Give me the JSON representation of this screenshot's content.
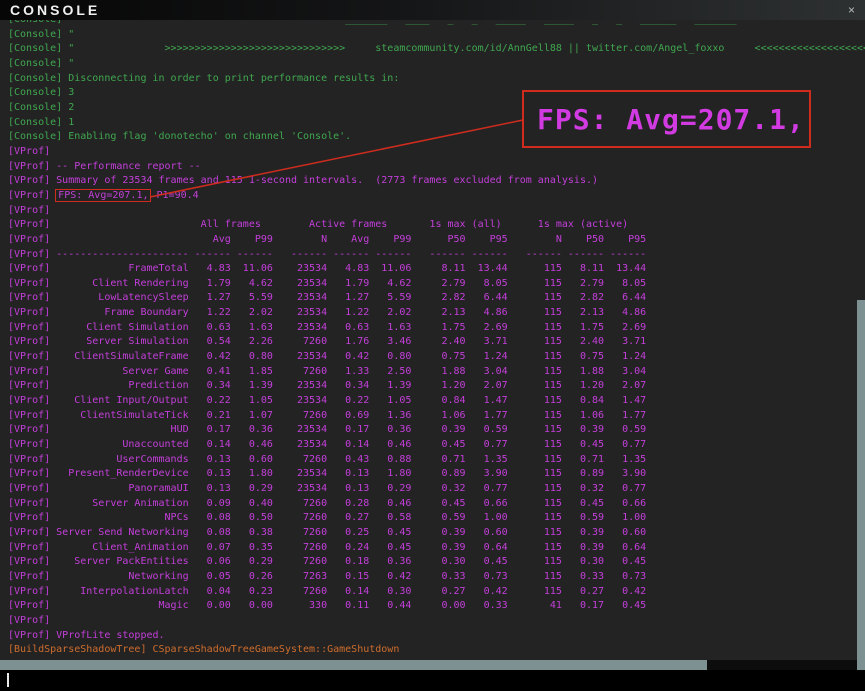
{
  "window": {
    "title": "CONSOLE",
    "close": "×"
  },
  "colors": {
    "green": "#3fa74f",
    "magenta": "#c33fda",
    "magenta-bright": "#d23be2",
    "orange": "#cd6d2c",
    "red": "#cf2c1e",
    "bg-output": "#242324",
    "scrollbar": "#7d9193"
  },
  "callout": {
    "text": "FPS: Avg=207.1,"
  },
  "console": {
    "lines": [
      {
        "c": "green",
        "t": "[Console] \"                                             _______   ____   _   _   _____   _____   _   _   ______   _______"
      },
      {
        "c": "green",
        "t": "[Console] \""
      },
      {
        "c": "green",
        "t": "[Console] \"               >>>>>>>>>>>>>>>>>>>>>>>>>>>>>>     steamcommunity.com/id/AnnGell88 || twitter.com/Angel_foxxo     <<<<<<<<<<<<<<<<<<<<<<<<<<<<<<"
      },
      {
        "c": "green",
        "t": "[Console] \""
      },
      {
        "c": "green",
        "t": "[Console] Disconnecting in order to print performance results in:"
      },
      {
        "c": "green",
        "t": "[Console] 3"
      },
      {
        "c": "green",
        "t": "[Console] 2"
      },
      {
        "c": "green",
        "t": "[Console] 1"
      },
      {
        "c": "green",
        "t": "[Console] Enabling flag 'donotecho' on channel 'Console'."
      },
      {
        "c": "magenta",
        "t": "[VProf]"
      },
      {
        "c": "magenta",
        "t": "[VProf] -- Performance report --"
      },
      {
        "c": "magenta",
        "t": "[VProf] Summary of 23534 frames and 115 1-second intervals.  (2773 frames excluded from analysis.)"
      },
      {
        "c": "magenta",
        "t": "[VProf] FPS: Avg=207.1, P1=90.4",
        "hl": "FPS: Avg=207.1,"
      },
      {
        "c": "magenta",
        "t": "[VProf]"
      },
      {
        "table": true
      },
      {
        "c": "magenta",
        "t": "[VProf]"
      },
      {
        "c": "magenta",
        "t": "[VProf] VProfLite stopped."
      },
      {
        "c": "orange",
        "t": "[BuildSparseShadowTree] CSparseShadowTreeGameSystem::GameShutdown"
      }
    ],
    "table": {
      "prefix": "[VProf] ",
      "groups": [
        "All frames",
        "Active frames",
        "1s max (all)",
        "1s max (active)"
      ],
      "columns": [
        "Avg",
        "P99",
        "N",
        "Avg",
        "P99",
        "P50",
        "P95",
        "N",
        "P50",
        "P95"
      ],
      "rows": [
        [
          "FrameTotal",
          "4.83",
          "11.06",
          "23534",
          "4.83",
          "11.06",
          "8.11",
          "13.44",
          "115",
          "8.11",
          "13.44"
        ],
        [
          "Client Rendering",
          "1.79",
          "4.62",
          "23534",
          "1.79",
          "4.62",
          "2.79",
          "8.05",
          "115",
          "2.79",
          "8.05"
        ],
        [
          "LowLatencySleep",
          "1.27",
          "5.59",
          "23534",
          "1.27",
          "5.59",
          "2.82",
          "6.44",
          "115",
          "2.82",
          "6.44"
        ],
        [
          "Frame Boundary",
          "1.22",
          "2.02",
          "23534",
          "1.22",
          "2.02",
          "2.13",
          "4.86",
          "115",
          "2.13",
          "4.86"
        ],
        [
          "Client Simulation",
          "0.63",
          "1.63",
          "23534",
          "0.63",
          "1.63",
          "1.75",
          "2.69",
          "115",
          "1.75",
          "2.69"
        ],
        [
          "Server Simulation",
          "0.54",
          "2.26",
          "7260",
          "1.76",
          "3.46",
          "2.40",
          "3.71",
          "115",
          "2.40",
          "3.71"
        ],
        [
          "ClientSimulateFrame",
          "0.42",
          "0.80",
          "23534",
          "0.42",
          "0.80",
          "0.75",
          "1.24",
          "115",
          "0.75",
          "1.24"
        ],
        [
          "Server Game",
          "0.41",
          "1.85",
          "7260",
          "1.33",
          "2.50",
          "1.88",
          "3.04",
          "115",
          "1.88",
          "3.04"
        ],
        [
          "Prediction",
          "0.34",
          "1.39",
          "23534",
          "0.34",
          "1.39",
          "1.20",
          "2.07",
          "115",
          "1.20",
          "2.07"
        ],
        [
          "Client Input/Output",
          "0.22",
          "1.05",
          "23534",
          "0.22",
          "1.05",
          "0.84",
          "1.47",
          "115",
          "0.84",
          "1.47"
        ],
        [
          "ClientSimulateTick",
          "0.21",
          "1.07",
          "7260",
          "0.69",
          "1.36",
          "1.06",
          "1.77",
          "115",
          "1.06",
          "1.77"
        ],
        [
          "HUD",
          "0.17",
          "0.36",
          "23534",
          "0.17",
          "0.36",
          "0.39",
          "0.59",
          "115",
          "0.39",
          "0.59"
        ],
        [
          "Unaccounted",
          "0.14",
          "0.46",
          "23534",
          "0.14",
          "0.46",
          "0.45",
          "0.77",
          "115",
          "0.45",
          "0.77"
        ],
        [
          "UserCommands",
          "0.13",
          "0.60",
          "7260",
          "0.43",
          "0.88",
          "0.71",
          "1.35",
          "115",
          "0.71",
          "1.35"
        ],
        [
          "Present_RenderDevice",
          "0.13",
          "1.80",
          "23534",
          "0.13",
          "1.80",
          "0.89",
          "3.90",
          "115",
          "0.89",
          "3.90"
        ],
        [
          "PanoramaUI",
          "0.13",
          "0.29",
          "23534",
          "0.13",
          "0.29",
          "0.32",
          "0.77",
          "115",
          "0.32",
          "0.77"
        ],
        [
          "Server Animation",
          "0.09",
          "0.40",
          "7260",
          "0.28",
          "0.46",
          "0.45",
          "0.66",
          "115",
          "0.45",
          "0.66"
        ],
        [
          "NPCs",
          "0.08",
          "0.50",
          "7260",
          "0.27",
          "0.58",
          "0.59",
          "1.00",
          "115",
          "0.59",
          "1.00"
        ],
        [
          "Server Send Networking",
          "0.08",
          "0.38",
          "7260",
          "0.25",
          "0.45",
          "0.39",
          "0.60",
          "115",
          "0.39",
          "0.60"
        ],
        [
          "Client_Animation",
          "0.07",
          "0.35",
          "7260",
          "0.24",
          "0.45",
          "0.39",
          "0.64",
          "115",
          "0.39",
          "0.64"
        ],
        [
          "Server PackEntities",
          "0.06",
          "0.29",
          "7260",
          "0.18",
          "0.36",
          "0.30",
          "0.45",
          "115",
          "0.30",
          "0.45"
        ],
        [
          "Networking",
          "0.05",
          "0.26",
          "7263",
          "0.15",
          "0.42",
          "0.33",
          "0.73",
          "115",
          "0.33",
          "0.73"
        ],
        [
          "InterpolationLatch",
          "0.04",
          "0.23",
          "7260",
          "0.14",
          "0.30",
          "0.27",
          "0.42",
          "115",
          "0.27",
          "0.42"
        ],
        [
          "Magic",
          "0.00",
          "0.00",
          "330",
          "0.11",
          "0.44",
          "0.00",
          "0.33",
          "41",
          "0.17",
          "0.45"
        ]
      ]
    }
  }
}
